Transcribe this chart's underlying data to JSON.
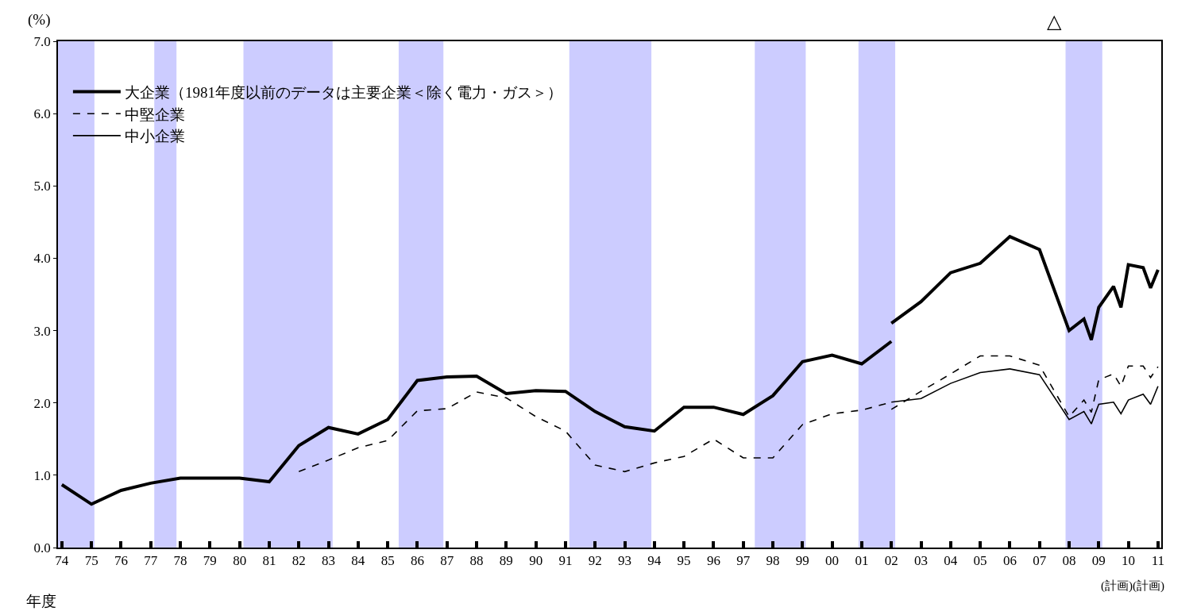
{
  "chart_data": {
    "type": "line",
    "ylabel": "(%)",
    "xlabel": "年度",
    "xlim": [
      1973.87,
      2011.11
    ],
    "ylim": [
      0,
      7
    ],
    "yticks": [
      {
        "value": 0,
        "label": "0.0"
      },
      {
        "value": 1,
        "label": "1.0"
      },
      {
        "value": 2,
        "label": "2.0"
      },
      {
        "value": 3,
        "label": "3.0"
      },
      {
        "value": 4,
        "label": "4.0"
      },
      {
        "value": 5,
        "label": "5.0"
      },
      {
        "value": 6,
        "label": "6.0"
      },
      {
        "value": 7,
        "label": "7.0"
      }
    ],
    "xticks": [
      {
        "value": 1974,
        "label": "74"
      },
      {
        "value": 1975,
        "label": "75"
      },
      {
        "value": 1976,
        "label": "76"
      },
      {
        "value": 1977,
        "label": "77"
      },
      {
        "value": 1978,
        "label": "78"
      },
      {
        "value": 1979,
        "label": "79"
      },
      {
        "value": 1980,
        "label": "80"
      },
      {
        "value": 1981,
        "label": "81"
      },
      {
        "value": 1982,
        "label": "82"
      },
      {
        "value": 1983,
        "label": "83"
      },
      {
        "value": 1984,
        "label": "84"
      },
      {
        "value": 1985,
        "label": "85"
      },
      {
        "value": 1986,
        "label": "86"
      },
      {
        "value": 1987,
        "label": "87"
      },
      {
        "value": 1988,
        "label": "88"
      },
      {
        "value": 1989,
        "label": "89"
      },
      {
        "value": 1990,
        "label": "90"
      },
      {
        "value": 1991,
        "label": "91"
      },
      {
        "value": 1992,
        "label": "92"
      },
      {
        "value": 1993,
        "label": "93"
      },
      {
        "value": 1994,
        "label": "94"
      },
      {
        "value": 1995,
        "label": "95"
      },
      {
        "value": 1996,
        "label": "96"
      },
      {
        "value": 1997,
        "label": "97"
      },
      {
        "value": 1998,
        "label": "98"
      },
      {
        "value": 1999,
        "label": "99"
      },
      {
        "value": 2000,
        "label": "00"
      },
      {
        "value": 2001,
        "label": "01"
      },
      {
        "value": 2002,
        "label": "02"
      },
      {
        "value": 2003,
        "label": "03"
      },
      {
        "value": 2004,
        "label": "04"
      },
      {
        "value": 2005,
        "label": "05"
      },
      {
        "value": 2006,
        "label": "06"
      },
      {
        "value": 2007,
        "label": "07"
      },
      {
        "value": 2008,
        "label": "08"
      },
      {
        "value": 2009,
        "label": "09"
      },
      {
        "value": 2010,
        "label": "10"
      },
      {
        "value": 2011,
        "label": "11"
      }
    ],
    "grid": false,
    "legend": "top left",
    "marker": "none",
    "bands": [
      {
        "axis": "x",
        "from": 1973.87,
        "to": 1975.1,
        "color": "#ccccff"
      },
      {
        "axis": "x",
        "from": 1977.12,
        "to": 1977.87,
        "color": "#ccccff"
      },
      {
        "axis": "x",
        "from": 1980.13,
        "to": 1983.14,
        "color": "#ccccff"
      },
      {
        "axis": "x",
        "from": 1985.37,
        "to": 1986.88,
        "color": "#ccccff"
      },
      {
        "axis": "x",
        "from": 1991.13,
        "to": 1993.9,
        "color": "#ccccff"
      },
      {
        "axis": "x",
        "from": 1997.39,
        "to": 1999.11,
        "color": "#ccccff"
      },
      {
        "axis": "x",
        "from": 2000.89,
        "to": 2002.13,
        "color": "#ccccff"
      },
      {
        "axis": "x",
        "from": 2007.88,
        "to": 2009.12,
        "color": "#ccccff"
      }
    ],
    "annotations": [
      "△",
      "(計画)(計画)"
    ],
    "series": [
      {
        "name": "大企業（1981年度以前のデータは主要企業＜除く電力・ガス＞）",
        "color": "#000000",
        "line_style": "solid",
        "x": [
          1974,
          1975,
          1976,
          1977,
          1978,
          1979,
          1980,
          1981,
          1982,
          1983,
          1984,
          1985,
          1986,
          1987,
          1988,
          1989,
          1990,
          1991,
          1992,
          1993,
          1994,
          1995,
          1996,
          1997,
          1998,
          1999,
          2000,
          2001,
          2002,
          null,
          2002,
          2003,
          2004,
          2005,
          2006,
          2007,
          2008,
          2008.5,
          2008.75,
          2009,
          2009.5,
          2009.75,
          2010,
          2010.5,
          2010.75,
          2011
        ],
        "values": [
          0.87,
          0.6,
          0.79,
          0.89,
          0.96,
          0.96,
          0.96,
          0.91,
          1.41,
          1.66,
          1.57,
          1.77,
          2.31,
          2.36,
          2.37,
          2.13,
          2.17,
          2.16,
          1.88,
          1.67,
          1.61,
          1.94,
          1.94,
          1.84,
          2.1,
          2.57,
          2.66,
          2.54,
          2.85,
          null,
          3.1,
          3.4,
          3.8,
          3.93,
          4.3,
          4.12,
          3.0,
          3.16,
          2.87,
          3.32,
          3.61,
          3.32,
          3.91,
          3.87,
          3.59,
          3.84
        ]
      },
      {
        "name": "中堅企業",
        "color": "#000000",
        "line_style": "dashed",
        "x": [
          1982,
          1983,
          1984,
          1985,
          1986,
          1987,
          1988,
          1989,
          1990,
          1991,
          1992,
          1993,
          1994,
          1995,
          1996,
          1997,
          1998,
          1999,
          2000,
          2001,
          2002,
          null,
          2002,
          2003,
          2004,
          2005,
          2006,
          2007,
          2008,
          2008.5,
          2008.75,
          2009,
          2009.5,
          2009.75,
          2010,
          2010.5,
          2010.75,
          2011
        ],
        "values": [
          1.05,
          1.21,
          1.38,
          1.48,
          1.89,
          1.92,
          2.15,
          2.07,
          1.81,
          1.61,
          1.14,
          1.05,
          1.17,
          1.26,
          1.5,
          1.24,
          1.24,
          1.7,
          1.85,
          1.9,
          2.01,
          null,
          1.91,
          2.16,
          2.4,
          2.65,
          2.65,
          2.52,
          1.81,
          2.04,
          1.87,
          2.32,
          2.4,
          2.23,
          2.51,
          2.51,
          2.35,
          2.5
        ]
      },
      {
        "name": "中小企業",
        "color": "#000000",
        "line_style": "solid",
        "x": [
          2002,
          2003,
          2004,
          2005,
          2006,
          2007,
          2008,
          2008.5,
          2008.75,
          2009,
          2009.5,
          2009.75,
          2010,
          2010.5,
          2010.75,
          2011
        ],
        "values": [
          2.01,
          2.06,
          2.27,
          2.42,
          2.47,
          2.39,
          1.77,
          1.88,
          1.71,
          1.98,
          2.01,
          1.85,
          2.04,
          2.12,
          1.98,
          2.23
        ]
      }
    ]
  }
}
